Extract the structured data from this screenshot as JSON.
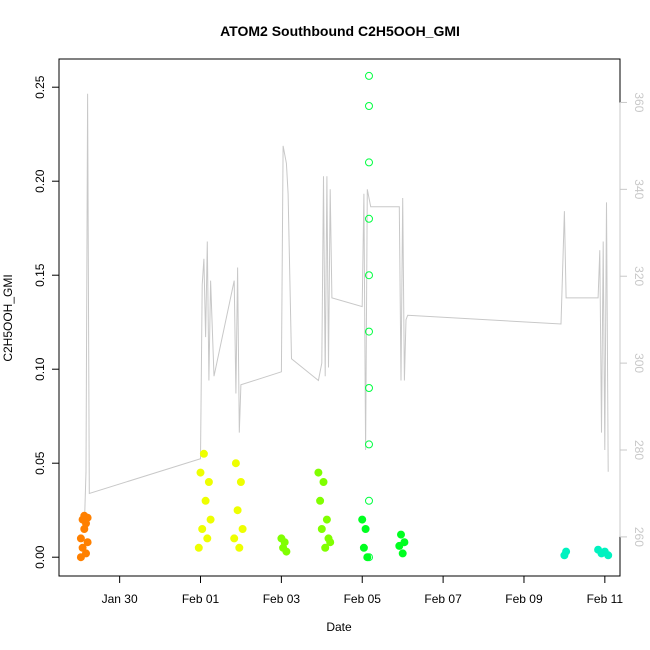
{
  "chart_data": {
    "type": "scatter",
    "title": "ATOM2 Southbound C2H5OOH_GMI",
    "xlabel": "Date",
    "ylabel": "C2H5OOH_GMI",
    "y2label": "",
    "xlim": [
      "2017-01-28T12:00",
      "2017-02-11T09:00"
    ],
    "ylim": [
      -0.01,
      0.265
    ],
    "y2lim": [
      251,
      370
    ],
    "x_ticks": [
      {
        "date": "2017-01-30",
        "label": "Jan 30"
      },
      {
        "date": "2017-02-01",
        "label": "Feb 01"
      },
      {
        "date": "2017-02-03",
        "label": "Feb 03"
      },
      {
        "date": "2017-02-05",
        "label": "Feb 05"
      },
      {
        "date": "2017-02-07",
        "label": "Feb 07"
      },
      {
        "date": "2017-02-09",
        "label": "Feb 09"
      },
      {
        "date": "2017-02-11",
        "label": "Feb 11"
      }
    ],
    "y_ticks": [
      {
        "value": 0.0,
        "label": "0.00"
      },
      {
        "value": 0.05,
        "label": "0.05"
      },
      {
        "value": 0.1,
        "label": "0.10"
      },
      {
        "value": 0.15,
        "label": "0.15"
      },
      {
        "value": 0.2,
        "label": "0.20"
      },
      {
        "value": 0.25,
        "label": "0.25"
      }
    ],
    "y2_ticks": [
      {
        "value": 260,
        "label": "260"
      },
      {
        "value": 280,
        "label": "280"
      },
      {
        "value": 300,
        "label": "300"
      },
      {
        "value": 320,
        "label": "320"
      },
      {
        "value": 340,
        "label": "340"
      },
      {
        "value": 360,
        "label": "360"
      }
    ],
    "grid": false,
    "legend": "none",
    "line_color": "#c8c8c8",
    "secondary_line": [
      [
        "2017-01-29T03:00",
        262
      ],
      [
        "2017-01-29T04:00",
        275
      ],
      [
        "2017-01-29T05:00",
        362
      ],
      [
        "2017-01-29T06:00",
        270
      ],
      [
        "2017-02-01T00:00",
        278
      ],
      [
        "2017-02-01T01:00",
        318
      ],
      [
        "2017-02-01T02:00",
        324
      ],
      [
        "2017-02-01T03:00",
        306
      ],
      [
        "2017-02-01T04:00",
        328
      ],
      [
        "2017-02-01T05:00",
        296
      ],
      [
        "2017-02-01T06:00",
        319
      ],
      [
        "2017-02-01T08:00",
        297
      ],
      [
        "2017-02-01T20:00",
        319
      ],
      [
        "2017-02-01T21:00",
        293
      ],
      [
        "2017-02-01T22:00",
        322
      ],
      [
        "2017-02-01T23:00",
        284
      ],
      [
        "2017-02-02T00:00",
        295
      ],
      [
        "2017-02-03T00:00",
        298
      ],
      [
        "2017-02-03T01:00",
        350
      ],
      [
        "2017-02-03T03:00",
        346
      ],
      [
        "2017-02-03T04:00",
        339
      ],
      [
        "2017-02-03T06:00",
        301
      ],
      [
        "2017-02-03T22:00",
        296
      ],
      [
        "2017-02-04T00:00",
        300
      ],
      [
        "2017-02-04T01:00",
        343
      ],
      [
        "2017-02-04T02:00",
        297
      ],
      [
        "2017-02-04T03:00",
        343
      ],
      [
        "2017-02-04T04:00",
        299
      ],
      [
        "2017-02-04T05:00",
        340
      ],
      [
        "2017-02-04T06:00",
        315
      ],
      [
        "2017-02-05T00:00",
        313
      ],
      [
        "2017-02-05T01:00",
        339
      ],
      [
        "2017-02-05T02:00",
        280
      ],
      [
        "2017-02-05T03:00",
        340
      ],
      [
        "2017-02-05T05:00",
        336
      ],
      [
        "2017-02-05T22:00",
        336
      ],
      [
        "2017-02-05T23:00",
        296
      ],
      [
        "2017-02-06T00:00",
        338
      ],
      [
        "2017-02-06T01:00",
        296
      ],
      [
        "2017-02-06T02:00",
        310
      ],
      [
        "2017-02-06T03:00",
        311
      ],
      [
        "2017-02-09T22:00",
        309
      ],
      [
        "2017-02-10T00:00",
        335
      ],
      [
        "2017-02-10T01:00",
        315
      ],
      [
        "2017-02-10T20:00",
        315
      ],
      [
        "2017-02-10T21:00",
        326
      ],
      [
        "2017-02-10T22:00",
        284
      ],
      [
        "2017-02-10T23:00",
        328
      ],
      [
        "2017-02-11T00:00",
        280
      ],
      [
        "2017-02-11T01:00",
        337
      ],
      [
        "2017-02-11T02:00",
        275
      ]
    ],
    "series": [
      {
        "name": "",
        "color": "#ff8000",
        "marker": "circle",
        "points": [
          [
            "2017-01-29T01:00",
            0.0
          ],
          [
            "2017-01-29T01:00",
            0.01
          ],
          [
            "2017-01-29T02:00",
            0.02
          ],
          [
            "2017-01-29T02:00",
            0.005
          ],
          [
            "2017-01-29T03:00",
            0.015
          ],
          [
            "2017-01-29T03:00",
            0.022
          ],
          [
            "2017-01-29T04:00",
            0.002
          ],
          [
            "2017-01-29T04:00",
            0.018
          ],
          [
            "2017-01-29T05:00",
            0.008
          ],
          [
            "2017-01-29T05:00",
            0.021
          ]
        ]
      },
      {
        "name": "",
        "color": "#eeff00",
        "marker": "circle",
        "points": [
          [
            "2017-01-31T23:00",
            0.005
          ],
          [
            "2017-02-01T00:00",
            0.045
          ],
          [
            "2017-02-01T01:00",
            0.015
          ],
          [
            "2017-02-01T02:00",
            0.055
          ],
          [
            "2017-02-01T03:00",
            0.03
          ],
          [
            "2017-02-01T04:00",
            0.01
          ],
          [
            "2017-02-01T05:00",
            0.04
          ],
          [
            "2017-02-01T06:00",
            0.02
          ],
          [
            "2017-02-01T20:00",
            0.01
          ],
          [
            "2017-02-01T21:00",
            0.05
          ],
          [
            "2017-02-01T22:00",
            0.025
          ],
          [
            "2017-02-01T23:00",
            0.005
          ],
          [
            "2017-02-02T00:00",
            0.04
          ],
          [
            "2017-02-02T01:00",
            0.015
          ]
        ]
      },
      {
        "name": "",
        "color": "#80ff00",
        "marker": "circle",
        "points": [
          [
            "2017-02-03T00:00",
            0.01
          ],
          [
            "2017-02-03T01:00",
            0.005
          ],
          [
            "2017-02-03T02:00",
            0.008
          ],
          [
            "2017-02-03T03:00",
            0.003
          ],
          [
            "2017-02-03T22:00",
            0.045
          ],
          [
            "2017-02-03T23:00",
            0.03
          ],
          [
            "2017-02-04T00:00",
            0.015
          ],
          [
            "2017-02-04T01:00",
            0.04
          ],
          [
            "2017-02-04T02:00",
            0.005
          ],
          [
            "2017-02-04T03:00",
            0.02
          ],
          [
            "2017-02-04T04:00",
            0.01
          ],
          [
            "2017-02-04T05:00",
            0.008
          ]
        ]
      },
      {
        "name": "",
        "color": "#00ff40",
        "marker": "open-circle",
        "points": [
          [
            "2017-02-05T04:00",
            0.0
          ],
          [
            "2017-02-05T04:00",
            0.03
          ],
          [
            "2017-02-05T04:00",
            0.06
          ],
          [
            "2017-02-05T04:00",
            0.09
          ],
          [
            "2017-02-05T04:00",
            0.12
          ],
          [
            "2017-02-05T04:00",
            0.15
          ],
          [
            "2017-02-05T04:00",
            0.18
          ],
          [
            "2017-02-05T04:00",
            0.21
          ],
          [
            "2017-02-05T04:00",
            0.24
          ],
          [
            "2017-02-05T04:00",
            0.256
          ]
        ]
      },
      {
        "name": "",
        "color": "#00ff20",
        "marker": "circle",
        "points": [
          [
            "2017-02-05T00:00",
            0.02
          ],
          [
            "2017-02-05T01:00",
            0.005
          ],
          [
            "2017-02-05T02:00",
            0.015
          ],
          [
            "2017-02-05T03:00",
            0.0
          ],
          [
            "2017-02-05T22:00",
            0.006
          ],
          [
            "2017-02-05T23:00",
            0.012
          ],
          [
            "2017-02-06T00:00",
            0.002
          ],
          [
            "2017-02-06T01:00",
            0.008
          ]
        ]
      },
      {
        "name": "",
        "color": "#00f2c0",
        "marker": "circle",
        "points": [
          [
            "2017-02-10T00:00",
            0.001
          ],
          [
            "2017-02-10T01:00",
            0.003
          ],
          [
            "2017-02-10T20:00",
            0.004
          ],
          [
            "2017-02-10T22:00",
            0.002
          ],
          [
            "2017-02-11T00:00",
            0.003
          ],
          [
            "2017-02-11T02:00",
            0.001
          ]
        ]
      }
    ]
  }
}
